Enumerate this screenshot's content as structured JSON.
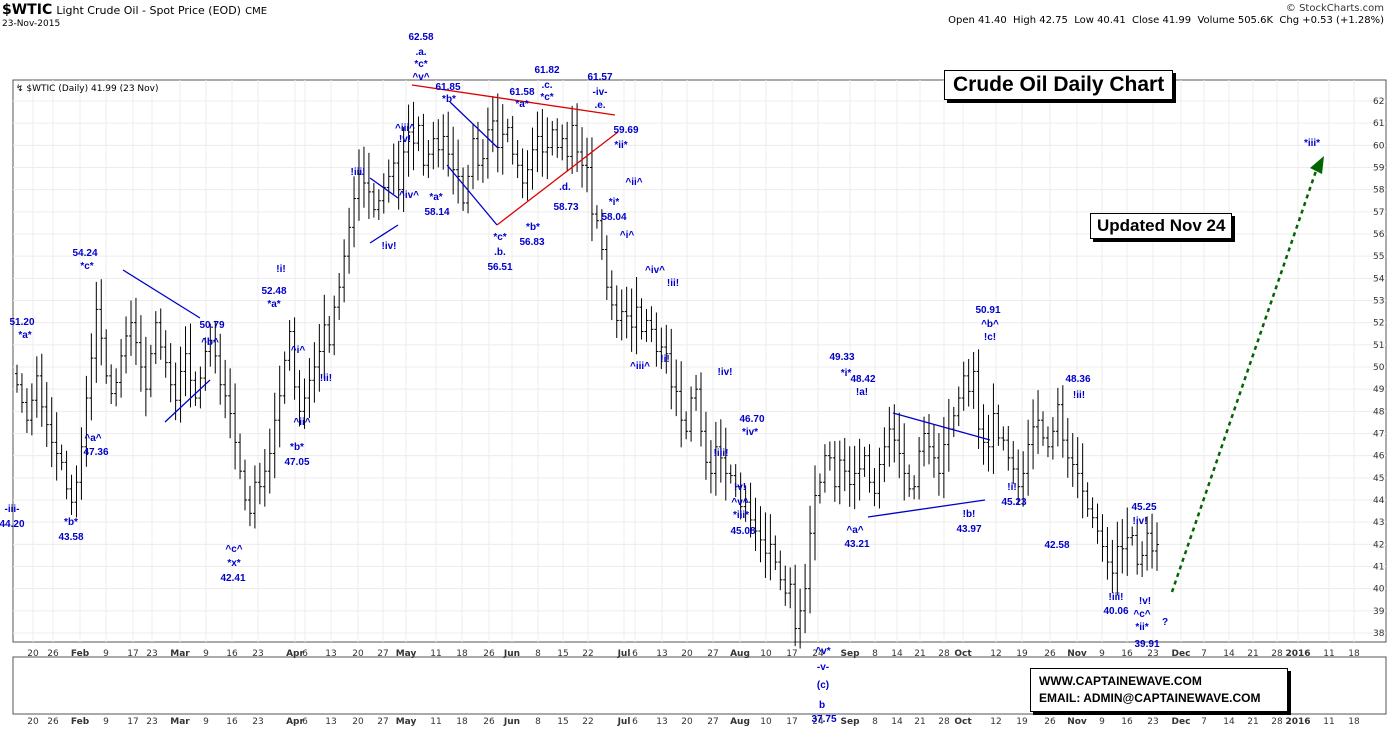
{
  "header": {
    "symbol": "$WTIC",
    "description": "Light Crude Oil - Spot Price (EOD)",
    "exchange": "CME",
    "date": "23-Nov-2015",
    "copyright": "© StockCharts.com",
    "quote": "Open 41.40  High 42.75  Low 40.41  Close 41.99  Volume 505.6K  Chg +0.53 (+1.28%)",
    "legend": "$WTIC (Daily) 41.99 (23 Nov)"
  },
  "boxes": {
    "title": "Crude Oil Daily Chart",
    "updated": "Updated Nov 24",
    "website": "WWW.CAPTAINEWAVE.COM",
    "email": "EMAIL: ADMIN@CAPTAINEWAVE.COM"
  },
  "colors": {
    "bars": "#000000",
    "annotations": "#0000cc",
    "trend_blue": "#0000cc",
    "trend_red": "#dd0000",
    "projection": "#006400"
  },
  "chart_data": {
    "type": "ohlc",
    "y_axis": {
      "min": 38,
      "max": 62,
      "step": 1,
      "side": "right"
    },
    "x_tick_labels": [
      "20",
      "26",
      "Feb",
      "9",
      "17",
      "23",
      "Mar",
      "9",
      "16",
      "23",
      "Apr",
      "6",
      "13",
      "20",
      "27",
      "May",
      "11",
      "18",
      "26",
      "Jun",
      "8",
      "15",
      "22",
      "Jul",
      "6",
      "13",
      "20",
      "27",
      "Aug",
      "10",
      "17",
      "24",
      "Sep",
      "8",
      "14",
      "21",
      "28",
      "Oct",
      "12",
      "19",
      "26",
      "Nov",
      "9",
      "16",
      "23",
      "Dec",
      "7",
      "14",
      "21",
      "28",
      "2016",
      "11",
      "18"
    ],
    "bars_close": [
      49.2,
      48.4,
      47.6,
      48.5,
      49.6,
      48.2,
      47.4,
      46.6,
      46.1,
      45.7,
      44.5,
      43.9,
      44.8,
      46.4,
      48.6,
      50.4,
      52.6,
      51.3,
      49.6,
      48.8,
      49.3,
      50.5,
      51.4,
      52.0,
      51.1,
      50.0,
      49.0,
      50.6,
      52.0,
      50.9,
      50.2,
      49.2,
      48.5,
      49.8,
      50.6,
      49.4,
      48.6,
      49.5,
      50.7,
      51.2,
      50.5,
      49.2,
      48.7,
      47.9,
      46.6,
      45.3,
      44.0,
      43.4,
      44.8,
      44.6,
      45.3,
      46.1,
      47.6,
      48.7,
      50.3,
      51.6,
      49.1,
      48.0,
      48.6,
      49.4,
      50.0,
      50.7,
      51.9,
      51.0,
      52.7,
      53.6,
      55.0,
      56.3,
      57.6,
      58.7,
      58.3,
      57.9,
      57.1,
      57.5,
      58.1,
      58.6,
      59.2,
      58.0,
      59.7,
      60.6,
      60.1,
      60.9,
      59.1,
      59.6,
      60.3,
      59.8,
      60.4,
      59.6,
      58.9,
      58.6,
      57.4,
      58.6,
      60.3,
      59.1,
      59.4,
      60.7,
      61.1,
      59.9,
      60.5,
      60.8,
      59.6,
      59.1,
      58.3,
      58.9,
      59.8,
      60.4,
      59.7,
      59.9,
      60.7,
      59.9,
      60.3,
      59.5,
      60.9,
      59.7,
      59.1,
      59.0,
      56.9,
      56.6,
      55.3,
      53.6,
      52.8,
      52.1,
      52.5,
      52.3,
      51.8,
      52.7,
      51.6,
      52.1,
      51.7,
      50.7,
      50.9,
      50.6,
      49.1,
      48.9,
      47.6,
      47.1,
      48.6,
      49.0,
      47.1,
      45.7,
      45.2,
      46.4,
      45.9,
      45.2,
      45.1,
      44.6,
      43.7,
      43.9,
      43.1,
      42.6,
      42.2,
      41.6,
      42.0,
      41.2,
      40.4,
      39.8,
      40.2,
      38.2,
      39.0,
      40.0,
      42.5,
      44.2,
      44.8,
      46.0,
      45.9,
      44.6,
      45.8,
      45.3,
      44.7,
      45.2,
      45.4,
      46.0,
      44.8,
      44.3,
      45.6,
      46.4,
      47.2,
      46.7,
      46.1,
      45.2,
      44.5,
      44.6,
      46.2,
      47.0,
      46.4,
      45.9,
      45.2,
      46.5,
      47.2,
      47.8,
      48.6,
      49.6,
      48.9,
      49.8,
      47.2,
      46.6,
      46.4,
      47.9,
      46.8,
      46.7,
      45.9,
      45.4,
      44.6,
      45.2,
      46.5,
      47.3,
      47.6,
      46.8,
      46.4,
      47.1,
      48.3,
      46.7,
      45.9,
      45.6,
      45.2,
      44.4,
      43.6,
      43.2,
      42.6,
      41.9,
      41.2,
      40.7,
      41.9,
      41.8,
      42.3,
      42.4,
      41.1,
      41.5,
      42.5,
      41.7,
      41.99
    ],
    "annotations": [
      "51.20",
      "*a*",
      "-iii-",
      "44.20",
      "*b*",
      "43.58",
      "54.24",
      "*c*",
      "^a^",
      "47.36",
      "50.79",
      "^b^",
      "52.48",
      "*a*",
      "^c^",
      "*x*",
      "42.41",
      "!i!",
      "^i^",
      "!ii!",
      "^ii^",
      "*b*",
      "47.05",
      "!iii!",
      "!iv!",
      "^iii^",
      "!v!",
      "^iv^",
      "*a*",
      "58.14",
      "62.58",
      ".a.",
      "*c*",
      "^v^",
      "61.85",
      "*b*",
      "*c*",
      ".b.",
      "56.51",
      "61.58",
      "*a*",
      "*b*",
      "56.83",
      "61.82",
      ".c.",
      "*c*",
      ".d.",
      "58.73",
      "61.57",
      "-iv-",
      ".e.",
      "59.69",
      "*ii*",
      "^ii^",
      "*i*",
      "58.04",
      "^i^",
      "^iv^",
      "!ii!",
      "^iii^",
      "!i!",
      "!iv!",
      "!iii!",
      "46.70",
      "*iv*",
      "!v!",
      "^v^",
      "*iii*",
      "45.08",
      "49.33",
      "*i*",
      "48.42",
      "!a!",
      "^a^",
      "43.21",
      "^v*",
      "-v-",
      "(c)",
      "b",
      "37.75",
      "50.91",
      "^b^",
      "!c!",
      "!i!",
      "45.23",
      "!b!",
      "43.97",
      "42.58",
      "48.36",
      "!ii!",
      "45.25",
      "!iv!",
      "!iii!",
      "40.06",
      "!v!",
      "^c^",
      "*ii*",
      "39.91",
      "?",
      "*iii*"
    ]
  }
}
